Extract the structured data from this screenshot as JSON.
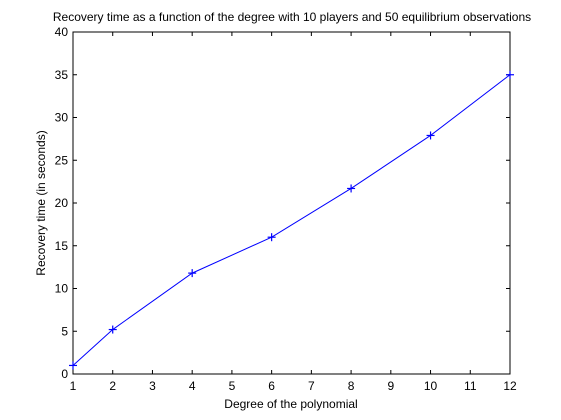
{
  "chart_data": {
    "type": "line",
    "title": "Recovery time as a function of the degree with 10 players and 50 equilibrium observations",
    "xlabel": "Degree of the polynomial",
    "ylabel": "Recovery time (in seconds)",
    "xlim": [
      1,
      12
    ],
    "ylim": [
      0,
      40
    ],
    "xticks": [
      "1",
      "2",
      "3",
      "4",
      "5",
      "6",
      "7",
      "8",
      "9",
      "10",
      "11",
      "12"
    ],
    "yticks": [
      "0",
      "5",
      "10",
      "15",
      "20",
      "25",
      "30",
      "35",
      "40"
    ],
    "grid": false,
    "legend": "none",
    "marker": "plus",
    "series": [
      {
        "x": [
          1,
          2,
          4,
          6,
          8,
          10,
          12
        ],
        "y": [
          1.0,
          5.2,
          11.8,
          16.0,
          21.7,
          27.9,
          35.0
        ],
        "color": "#0000ff"
      }
    ]
  }
}
